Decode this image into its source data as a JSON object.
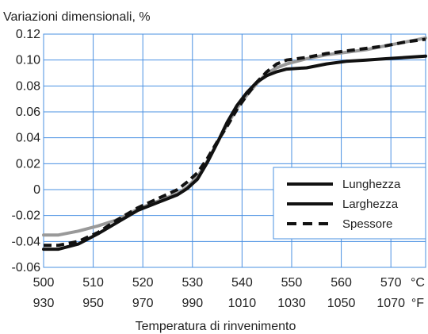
{
  "chart_data": {
    "type": "line",
    "title": "Variazioni dimensionali, %",
    "xlabel": "Temperatura di rinvenimento",
    "ylabel": "Variazioni dimensionali, %",
    "xlim": [
      500,
      577
    ],
    "ylim": [
      -0.06,
      0.12
    ],
    "y_ticks": [
      -0.06,
      -0.04,
      -0.02,
      0,
      0.02,
      0.04,
      0.06,
      0.08,
      0.1,
      0.12
    ],
    "y_tick_labels": [
      "-0.06",
      "-0.04",
      "-0.02",
      "0",
      "0.02",
      "0.04",
      "0.06",
      "0.08",
      "0.10",
      "0.12"
    ],
    "x_ticks_c": [
      500,
      510,
      520,
      530,
      540,
      550,
      560,
      570
    ],
    "x_ticks_f": [
      "930",
      "950",
      "970",
      "990",
      "1010",
      "1030",
      "1050",
      "1070"
    ],
    "x_unit_c": "°C",
    "x_unit_f": "°F",
    "grid": true,
    "grid_color": "#4a90e2",
    "legend_position": "right",
    "series": [
      {
        "name": "Lunghezza",
        "style": "solid",
        "color": "#999999",
        "legend_color": "#111111",
        "x": [
          500,
          503,
          507,
          511,
          515,
          519,
          523,
          527,
          529,
          531,
          533,
          535,
          537,
          539,
          541,
          543,
          545,
          547,
          549,
          553,
          557,
          561,
          565,
          569,
          573,
          577
        ],
        "y": [
          -0.035,
          -0.035,
          -0.032,
          -0.028,
          -0.023,
          -0.015,
          -0.009,
          -0.003,
          0.002,
          0.01,
          0.022,
          0.036,
          0.05,
          0.063,
          0.073,
          0.082,
          0.09,
          0.094,
          0.097,
          0.101,
          0.104,
          0.106,
          0.108,
          0.111,
          0.114,
          0.117
        ]
      },
      {
        "name": "Larghezza",
        "style": "solid",
        "color": "#111111",
        "legend_color": "#111111",
        "x": [
          500,
          503,
          507,
          511,
          515,
          519,
          523,
          527,
          529,
          531,
          533,
          535,
          537,
          539,
          541,
          543,
          545,
          547,
          549,
          553,
          557,
          561,
          565,
          569,
          573,
          577
        ],
        "y": [
          -0.046,
          -0.046,
          -0.042,
          -0.034,
          -0.025,
          -0.016,
          -0.01,
          -0.004,
          0.001,
          0.008,
          0.021,
          0.036,
          0.052,
          0.065,
          0.075,
          0.083,
          0.088,
          0.091,
          0.093,
          0.094,
          0.097,
          0.099,
          0.1,
          0.101,
          0.102,
          0.103
        ]
      },
      {
        "name": "Spessore",
        "style": "dashed",
        "color": "#111111",
        "legend_color": "#111111",
        "x": [
          500,
          503,
          507,
          511,
          515,
          519,
          523,
          527,
          529,
          531,
          533,
          535,
          537,
          539,
          541,
          543,
          545,
          547,
          549,
          553,
          557,
          561,
          565,
          569,
          573,
          577
        ],
        "y": [
          -0.043,
          -0.043,
          -0.04,
          -0.033,
          -0.023,
          -0.014,
          -0.007,
          0.0,
          0.006,
          0.013,
          0.024,
          0.037,
          0.049,
          0.062,
          0.073,
          0.083,
          0.091,
          0.097,
          0.1,
          0.102,
          0.105,
          0.107,
          0.109,
          0.111,
          0.114,
          0.116
        ]
      }
    ]
  }
}
